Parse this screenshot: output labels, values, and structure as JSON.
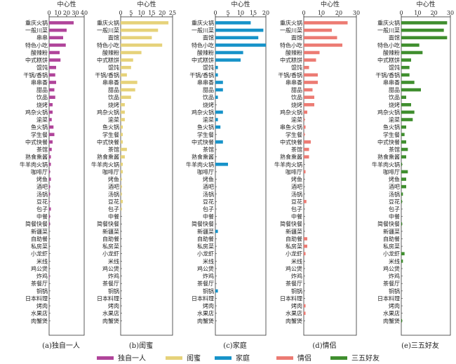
{
  "chart_data": [
    {
      "type": "bar",
      "orientation": "horizontal",
      "caption": "(a)独自一人",
      "axis_title": "中心性",
      "xlim": [
        0,
        40
      ],
      "ticks": [
        "0",
        "10",
        "20",
        "30",
        "40"
      ],
      "tick_values": [
        0,
        10,
        20,
        30,
        40
      ],
      "color": "#b0449a",
      "categories": [
        "重庆火锅",
        "一般川菜",
        "串串",
        "特色小吃",
        "酸辣粉",
        "中式糕饼",
        "馄饨",
        "干锅/香锅",
        "串串香",
        "甜品",
        "饮品",
        "烧烤",
        "鸡杂火锅",
        "渝菜",
        "鱼火锅",
        "学生餐",
        "中式快餐",
        "茶馆",
        "熟食熏酱",
        "牛羊肉火锅",
        "咖啡厅",
        "烤鱼",
        "酒吧",
        "汤锅",
        "豆花",
        "包子",
        "中餐",
        "简餐快餐",
        "新疆菜",
        "自助餐",
        "私房菜",
        "小龙虾",
        "米线",
        "鸡公煲",
        "炸鸡",
        "茶餐厅",
        "铜锅",
        "日本料理",
        "烤肉",
        "水果店",
        "肉蟹煲"
      ],
      "values": [
        28,
        20,
        16,
        19,
        12,
        13,
        8,
        7,
        8,
        6,
        7,
        4,
        4,
        3,
        5,
        6,
        4,
        3,
        2,
        2,
        1,
        2,
        1,
        1,
        0.5,
        2,
        1,
        1,
        0,
        0,
        0,
        0,
        0,
        0,
        0.5,
        0,
        0,
        0,
        0,
        0,
        0
      ]
    },
    {
      "type": "bar",
      "orientation": "horizontal",
      "caption": "(b)闺蜜",
      "axis_title": "中心性",
      "xlim": [
        0,
        25
      ],
      "ticks": [
        "0",
        "5",
        "10",
        "15",
        "20",
        "25"
      ],
      "tick_values": [
        0,
        5,
        10,
        15,
        20,
        25
      ],
      "color": "#e6d27a",
      "categories": [
        "重庆火锅",
        "一般川菜",
        "面馆",
        "特色小吃",
        "酸辣粉",
        "中式糕饼",
        "馄饨",
        "干锅/香锅",
        "串串香",
        "甜品",
        "饮品",
        "烧烤",
        "鸡杂火锅",
        "渝菜",
        "鱼火锅",
        "学生餐",
        "中式快餐",
        "茶馆",
        "熟食熏酱",
        "牛羊肉火锅",
        "咖啡厅",
        "烤鱼",
        "酒吧",
        "汤锅",
        "豆花",
        "包子",
        "中餐",
        "简餐快餐",
        "新疆菜",
        "自助餐",
        "私房菜",
        "小龙虾",
        "米线",
        "鸡公煲",
        "炸鸡",
        "茶餐厅",
        "铜锅",
        "日本料理",
        "烤肉",
        "水果店",
        "肉蟹煲"
      ],
      "values": [
        23,
        18,
        15,
        20,
        10,
        6,
        5,
        3,
        8,
        7,
        5,
        2,
        2,
        2,
        1,
        1,
        1,
        3,
        2,
        1,
        1,
        0.5,
        0.5,
        0.5,
        1,
        0.5,
        0,
        0,
        0,
        0,
        0,
        0,
        0,
        0,
        0,
        0,
        0,
        0,
        0,
        0,
        0
      ]
    },
    {
      "type": "bar",
      "orientation": "horizontal",
      "caption": "(c)家庭",
      "axis_title": "中心性",
      "xlim": [
        0,
        20
      ],
      "ticks": [
        "0",
        "5",
        "10",
        "15",
        "20"
      ],
      "tick_values": [
        0,
        5,
        10,
        15,
        20
      ],
      "color": "#1793c9",
      "categories": [
        "重庆火锅",
        "一般川菜",
        "面馆",
        "特色小吃",
        "酸辣粉",
        "中式糕饼",
        "馄饨",
        "干锅/香锅",
        "串串香",
        "甜品",
        "饮品",
        "烧烤",
        "鸡杂火锅",
        "渝菜",
        "鱼火锅",
        "学生餐",
        "中式快餐",
        "茶馆",
        "熟食熏酱",
        "牛羊肉火锅",
        "咖啡厅",
        "烤鱼",
        "酒吧",
        "汤锅",
        "豆花",
        "包子",
        "中餐",
        "简餐快餐",
        "新疆菜",
        "自助餐",
        "私房菜",
        "小龙虾",
        "米线",
        "鸡公煲",
        "炸鸡",
        "茶餐厅",
        "铜锅",
        "日本料理",
        "烤肉",
        "水果店",
        "肉蟹煲"
      ],
      "values": [
        14,
        19,
        17,
        20,
        11,
        10,
        1,
        1,
        3,
        3,
        1,
        0,
        3,
        1,
        2,
        0,
        3,
        0,
        0,
        5,
        0,
        0,
        0,
        0,
        0,
        0,
        0,
        0,
        1,
        0,
        0,
        0,
        0,
        0,
        0,
        0,
        1,
        0,
        0,
        0,
        0
      ]
    },
    {
      "type": "bar",
      "orientation": "horizontal",
      "caption": "(d)情侣",
      "axis_title": "中心性",
      "xlim": [
        0,
        30
      ],
      "ticks": [
        "0",
        "10",
        "20",
        "30"
      ],
      "tick_values": [
        0,
        10,
        20,
        30
      ],
      "color": "#ec7b73",
      "categories": [
        "重庆火锅",
        "一般川菜",
        "面馆",
        "特色小吃",
        "酸辣粉",
        "中式糕饼",
        "馄饨",
        "干锅/香锅",
        "串串香",
        "甜品",
        "饮品",
        "烧烤",
        "鸡杂火锅",
        "渝菜",
        "串鱼火锅",
        "学生餐",
        "中式快餐",
        "茶馆",
        "熟食熏酱",
        "牛羊肉火锅",
        "咖啡厅",
        "烤鱼",
        "酒吧",
        "汤锅",
        "豆花",
        "包子",
        "中餐",
        "简餐快餐",
        "新疆菜",
        "自助餐",
        "私房菜",
        "小龙虾",
        "米线",
        "鸡公煲",
        "炸鸡",
        "茶餐厅",
        "铜锅",
        "日本料理",
        "烤肉",
        "水果店",
        "肉蟹煲"
      ],
      "values": [
        25,
        16,
        19,
        22,
        9,
        7,
        3,
        8,
        8,
        5,
        6,
        6,
        2,
        0.5,
        1,
        0.5,
        4,
        3,
        3,
        0,
        1,
        0,
        0,
        0,
        1.5,
        0,
        0,
        0,
        0,
        2,
        2,
        1,
        0,
        0,
        0,
        0,
        0,
        0,
        1,
        1,
        0
      ]
    },
    {
      "type": "bar",
      "orientation": "horizontal",
      "caption": "(e)三五好友",
      "axis_title": "中心性",
      "xlim": [
        0,
        30
      ],
      "ticks": [
        "0",
        "10",
        "20",
        "30"
      ],
      "tick_values": [
        0,
        10,
        20,
        30
      ],
      "color": "#3f8e2e",
      "categories": [
        "重庆火锅",
        "一般川菜",
        "面馆",
        "特色小吃",
        "酸辣粉",
        "中式糕饼",
        "馄饨",
        "干锅/香锅",
        "串串香",
        "甜品",
        "饮品",
        "烧烤",
        "鸡杂火锅",
        "渝菜",
        "鱼火锅",
        "学生餐",
        "中式快餐",
        "茶馆",
        "熟食熏酱",
        "牛羊肉火锅",
        "咖啡厅",
        "烤鱼",
        "酒吧",
        "汤锅",
        "豆花",
        "包子",
        "中餐",
        "简餐快餐",
        "新疆菜",
        "自助餐",
        "私房菜",
        "小龙虾",
        "米线",
        "鸡公煲",
        "炸鸡",
        "茶餐厅",
        "铜锅",
        "日本料理",
        "烤肉",
        "水果店",
        "肉蟹煲"
      ],
      "values": [
        28,
        26,
        28,
        11,
        13,
        6,
        5,
        5,
        8,
        12,
        3,
        6,
        8,
        7,
        3,
        2,
        3,
        4,
        3,
        0.5,
        4,
        3,
        3,
        1,
        0.5,
        0,
        0,
        0.5,
        0,
        0,
        0,
        2,
        1,
        0,
        0,
        0,
        0,
        0,
        0,
        0,
        0.5
      ]
    }
  ],
  "legend": [
    {
      "label": "独自一人",
      "color": "#b0449a"
    },
    {
      "label": "闺蜜",
      "color": "#e6d27a"
    },
    {
      "label": "家庭",
      "color": "#1793c9"
    },
    {
      "label": "情侣",
      "color": "#ec7b73"
    },
    {
      "label": "三五好友",
      "color": "#3f8e2e"
    }
  ]
}
